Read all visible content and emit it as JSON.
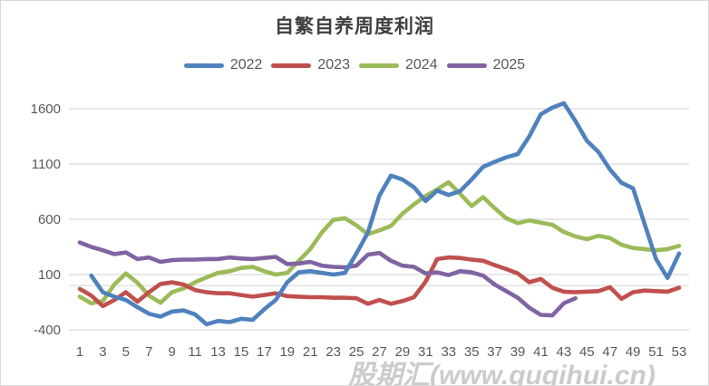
{
  "chart_data": {
    "type": "line",
    "title": "自繁自养周度利润",
    "x_unit": "week",
    "x_range": [
      1,
      53
    ],
    "xticks": [
      1,
      3,
      5,
      7,
      9,
      11,
      13,
      15,
      17,
      19,
      21,
      23,
      25,
      27,
      29,
      31,
      33,
      35,
      37,
      39,
      41,
      43,
      45,
      47,
      49,
      51,
      53
    ],
    "yticks": [
      1600,
      1100,
      600,
      100,
      -400
    ],
    "ylim": [
      -460,
      1700
    ],
    "grid": true,
    "zero_axis": true,
    "legend_position": "top",
    "series": [
      {
        "name": "2022",
        "color": "#4F81BD",
        "values": [
          null,
          90,
          -60,
          -100,
          -130,
          -195,
          -255,
          -280,
          -235,
          -225,
          -260,
          -350,
          -320,
          -330,
          -300,
          -310,
          -215,
          -130,
          30,
          120,
          130,
          115,
          100,
          115,
          290,
          480,
          815,
          995,
          960,
          890,
          765,
          860,
          820,
          855,
          960,
          1075,
          1120,
          1160,
          1190,
          1350,
          1550,
          1610,
          1650,
          1490,
          1310,
          1210,
          1050,
          930,
          880,
          560,
          240,
          70,
          290
        ]
      },
      {
        "name": "2023",
        "color": "#C0504D",
        "values": [
          -30,
          -90,
          -185,
          -130,
          -60,
          -145,
          -60,
          15,
          30,
          10,
          -40,
          -60,
          -70,
          -70,
          -85,
          -100,
          -85,
          -70,
          -95,
          -100,
          -105,
          -105,
          -110,
          -110,
          -115,
          -165,
          -130,
          -165,
          -140,
          -105,
          35,
          240,
          255,
          250,
          235,
          225,
          185,
          150,
          110,
          30,
          60,
          -20,
          -55,
          -60,
          -55,
          -50,
          -15,
          -120,
          -60,
          -45,
          -50,
          -55,
          -20
        ]
      },
      {
        "name": "2024",
        "color": "#9BBB59",
        "values": [
          -100,
          -160,
          -140,
          10,
          110,
          25,
          -90,
          -155,
          -60,
          -25,
          30,
          75,
          115,
          130,
          160,
          170,
          130,
          100,
          115,
          225,
          330,
          480,
          595,
          610,
          545,
          465,
          500,
          540,
          650,
          735,
          810,
          870,
          935,
          830,
          720,
          800,
          700,
          610,
          565,
          590,
          570,
          550,
          485,
          445,
          420,
          450,
          430,
          370,
          340,
          330,
          320,
          330,
          360
        ]
      },
      {
        "name": "2025",
        "color": "#8064A2",
        "values": [
          390,
          350,
          320,
          285,
          300,
          240,
          255,
          215,
          230,
          235,
          235,
          240,
          240,
          255,
          245,
          240,
          250,
          260,
          195,
          200,
          215,
          180,
          170,
          165,
          180,
          280,
          295,
          225,
          180,
          170,
          110,
          120,
          95,
          130,
          120,
          90,
          10,
          -50,
          -110,
          -200,
          -265,
          -270,
          -160,
          -115,
          null,
          null,
          null,
          null,
          null,
          null,
          null,
          null,
          null
        ]
      }
    ]
  },
  "watermark": {
    "text": "股期汇(www.guqihui.cn)"
  },
  "colors": {
    "grid": "#D9D9D9",
    "axis_text": "#595959",
    "title_text": "#3F3F3F",
    "watermark": "#8C8C8C"
  }
}
